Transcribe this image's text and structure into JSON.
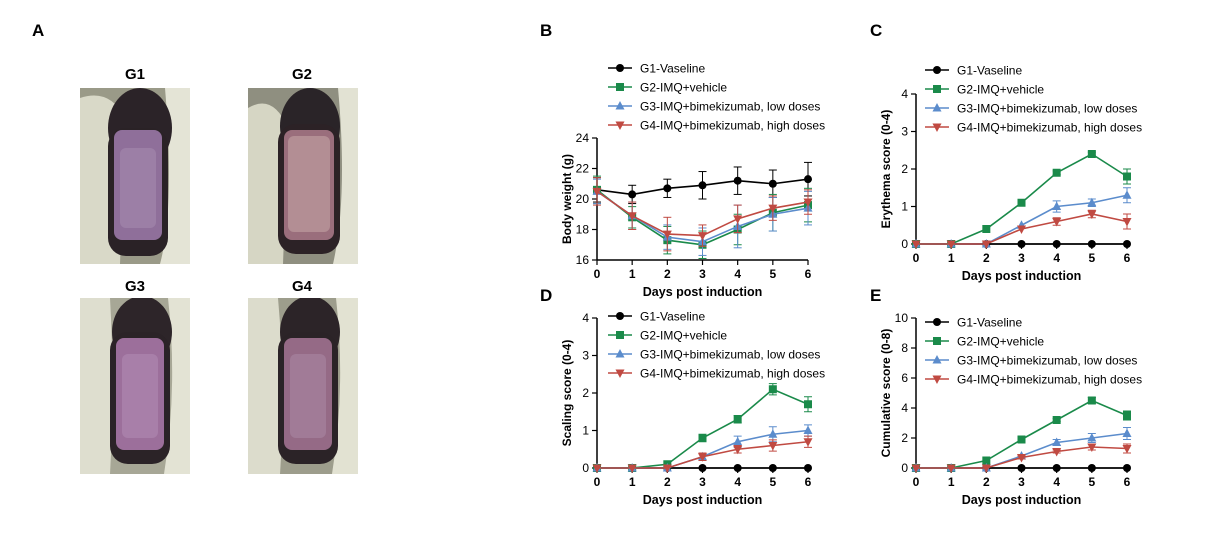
{
  "panels": {
    "A": {
      "letter": "A",
      "photos": [
        "G1",
        "G2",
        "G3",
        "G4"
      ]
    },
    "B": {
      "letter": "B"
    },
    "C": {
      "letter": "C"
    },
    "D": {
      "letter": "D"
    },
    "E": {
      "letter": "E"
    }
  },
  "colors": {
    "G1": "#000000",
    "G2": "#1a8a4a",
    "G3": "#5b8ccc",
    "G4": "#c04a42"
  },
  "chart_data": [
    {
      "id": "B",
      "type": "line",
      "xlabel": "Days post induction",
      "ylabel": "Body weight (g)",
      "x": [
        0,
        1,
        2,
        3,
        4,
        5,
        6
      ],
      "xticks": [
        "0",
        "1",
        "2",
        "3",
        "4",
        "5",
        "6"
      ],
      "ylim": [
        16,
        24
      ],
      "yticks": [
        "16",
        "18",
        "20",
        "22",
        "24"
      ],
      "legend_position": "top",
      "series": [
        {
          "name": "G1-Vaseline",
          "marker": "circle",
          "values": [
            20.6,
            20.3,
            20.7,
            20.9,
            21.2,
            21.0,
            21.3
          ],
          "errors": [
            0.8,
            0.6,
            0.6,
            0.9,
            0.9,
            0.9,
            1.1
          ]
        },
        {
          "name": "G2-IMQ+vehicle",
          "marker": "square",
          "values": [
            20.6,
            18.8,
            17.3,
            17.0,
            18.0,
            19.1,
            19.6
          ],
          "errors": [
            0.9,
            0.7,
            0.9,
            0.9,
            1.0,
            1.2,
            1.1
          ]
        },
        {
          "name": "G3-IMQ+bimekizumab, low doses",
          "marker": "triangle-up",
          "values": [
            20.5,
            18.9,
            17.5,
            17.2,
            18.2,
            19.0,
            19.4
          ],
          "errors": [
            0.8,
            0.9,
            0.8,
            0.9,
            1.4,
            1.1,
            1.1
          ]
        },
        {
          "name": "G4-IMQ+bimekizumab, high doses",
          "marker": "triangle-down",
          "values": [
            20.5,
            18.9,
            17.7,
            17.6,
            18.7,
            19.4,
            19.8
          ],
          "errors": [
            0.9,
            0.9,
            1.1,
            0.7,
            0.9,
            0.8,
            0.8
          ]
        }
      ]
    },
    {
      "id": "C",
      "type": "line",
      "xlabel": "Days post induction",
      "ylabel": "Erythema score (0-4)",
      "x": [
        0,
        1,
        2,
        3,
        4,
        5,
        6
      ],
      "xticks": [
        "0",
        "1",
        "2",
        "3",
        "4",
        "5",
        "6"
      ],
      "ylim": [
        0,
        4
      ],
      "yticks": [
        "0",
        "1",
        "2",
        "3",
        "4"
      ],
      "legend_position": "top",
      "series": [
        {
          "name": "G1-Vaseline",
          "marker": "circle",
          "values": [
            0,
            0,
            0,
            0,
            0,
            0,
            0
          ],
          "errors": [
            0,
            0,
            0,
            0,
            0,
            0,
            0
          ]
        },
        {
          "name": "G2-IMQ+vehicle",
          "marker": "square",
          "values": [
            0,
            0,
            0.4,
            1.1,
            1.9,
            2.4,
            1.8
          ],
          "errors": [
            0,
            0,
            0,
            0.08,
            0.05,
            0.05,
            0.2
          ]
        },
        {
          "name": "G3-IMQ+bimekizumab, low doses",
          "marker": "triangle-up",
          "values": [
            0,
            0,
            0,
            0.5,
            1.0,
            1.1,
            1.3
          ],
          "errors": [
            0,
            0,
            0,
            0,
            0.15,
            0.1,
            0.2
          ]
        },
        {
          "name": "G4-IMQ+bimekizumab, high doses",
          "marker": "triangle-down",
          "values": [
            0,
            0,
            0,
            0.4,
            0.6,
            0.8,
            0.6
          ],
          "errors": [
            0,
            0,
            0,
            0,
            0.1,
            0.1,
            0.2
          ]
        }
      ]
    },
    {
      "id": "D",
      "type": "line",
      "xlabel": "Days post induction",
      "ylabel": "Scaling score (0-4)",
      "x": [
        0,
        1,
        2,
        3,
        4,
        5,
        6
      ],
      "xticks": [
        "0",
        "1",
        "2",
        "3",
        "4",
        "5",
        "6"
      ],
      "ylim": [
        0,
        4
      ],
      "yticks": [
        "0",
        "1",
        "2",
        "3",
        "4"
      ],
      "legend_position": "top",
      "series": [
        {
          "name": "G1-Vaseline",
          "marker": "circle",
          "values": [
            0,
            0,
            0,
            0,
            0,
            0,
            0
          ],
          "errors": [
            0,
            0,
            0,
            0,
            0,
            0,
            0
          ]
        },
        {
          "name": "G2-IMQ+vehicle",
          "marker": "square",
          "values": [
            0,
            0,
            0.1,
            0.8,
            1.3,
            2.1,
            1.7
          ],
          "errors": [
            0,
            0,
            0,
            0.1,
            0.1,
            0.15,
            0.2
          ]
        },
        {
          "name": "G3-IMQ+bimekizumab, low doses",
          "marker": "triangle-up",
          "values": [
            0,
            0,
            0,
            0.3,
            0.7,
            0.9,
            1.0
          ],
          "errors": [
            0,
            0,
            0,
            0.1,
            0.15,
            0.2,
            0.15
          ]
        },
        {
          "name": "G4-IMQ+bimekizumab, high doses",
          "marker": "triangle-down",
          "values": [
            0,
            0,
            0,
            0.3,
            0.5,
            0.6,
            0.7
          ],
          "errors": [
            0,
            0,
            0,
            0.1,
            0.1,
            0.15,
            0.15
          ]
        }
      ]
    },
    {
      "id": "E",
      "type": "line",
      "xlabel": "Days post induction",
      "ylabel": "Cumulative score (0-8)",
      "x": [
        0,
        1,
        2,
        3,
        4,
        5,
        6
      ],
      "xticks": [
        "0",
        "1",
        "2",
        "3",
        "4",
        "5",
        "6"
      ],
      "ylim": [
        0,
        10
      ],
      "yticks": [
        "0",
        "2",
        "4",
        "6",
        "8",
        "10"
      ],
      "legend_position": "top",
      "series": [
        {
          "name": "G1-Vaseline",
          "marker": "circle",
          "values": [
            0,
            0,
            0,
            0,
            0,
            0,
            0
          ],
          "errors": [
            0,
            0,
            0,
            0,
            0,
            0,
            0
          ]
        },
        {
          "name": "G2-IMQ+vehicle",
          "marker": "square",
          "values": [
            0,
            0,
            0.5,
            1.9,
            3.2,
            4.5,
            3.5
          ],
          "errors": [
            0,
            0,
            0,
            0.1,
            0.1,
            0.2,
            0.3
          ]
        },
        {
          "name": "G3-IMQ+bimekizumab, low doses",
          "marker": "triangle-up",
          "values": [
            0,
            0,
            0,
            0.8,
            1.7,
            2.0,
            2.3
          ],
          "errors": [
            0,
            0,
            0,
            0.1,
            0.2,
            0.3,
            0.4
          ]
        },
        {
          "name": "G4-IMQ+bimekizumab, high doses",
          "marker": "triangle-down",
          "values": [
            0,
            0,
            0,
            0.7,
            1.1,
            1.4,
            1.3
          ],
          "errors": [
            0,
            0,
            0,
            0.1,
            0.1,
            0.2,
            0.3
          ]
        }
      ]
    }
  ]
}
